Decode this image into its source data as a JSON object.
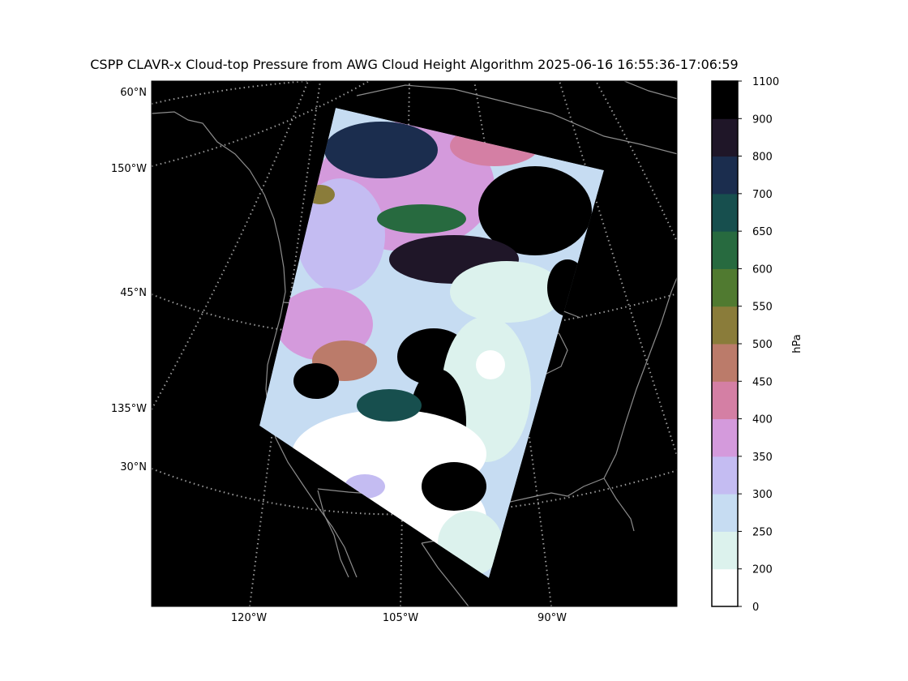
{
  "title": "CSPP CLAVR-x Cloud-top Pressure from AWG Cloud Height Algorithm 2025-06-16 16:55:36-17:06:59",
  "map": {
    "background": "#000000",
    "coastline_color": "#8c8c8c",
    "graticule_color": "#9a9a9a",
    "lat_labels": [
      "60°N",
      "45°N",
      "30°N"
    ],
    "lon_labels_left": [
      "150°W",
      "135°W"
    ],
    "lon_labels_bottom": [
      "120°W",
      "105°W",
      "90°W"
    ]
  },
  "colorbar": {
    "label": "hPa",
    "ticks": [
      "0",
      "200",
      "250",
      "300",
      "350",
      "400",
      "450",
      "500",
      "550",
      "600",
      "650",
      "700",
      "800",
      "900",
      "1100"
    ],
    "colors": [
      "#ffffff",
      "#dcf2ed",
      "#c6dcf2",
      "#c4bcf2",
      "#d49adc",
      "#d47fa4",
      "#bb7b6a",
      "#8a7c3a",
      "#507a30",
      "#276a3f",
      "#174f4e",
      "#1b2d4e",
      "#1f1628",
      "#000000"
    ]
  }
}
